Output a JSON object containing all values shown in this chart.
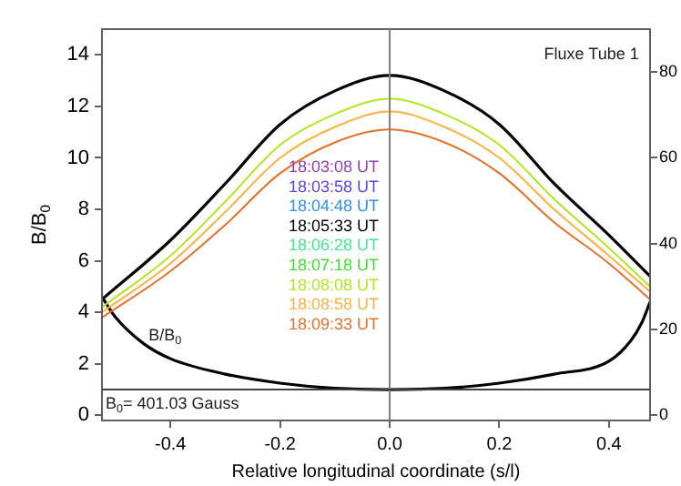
{
  "chart_data": {
    "type": "line",
    "xlabel": "Relative longitudinal coordinate (s/l)",
    "ylabel": "B/B$_{0}$",
    "x": [
      -0.525,
      -0.4,
      -0.3,
      -0.2,
      -0.1,
      0,
      0.1,
      0.2,
      0.3,
      0.4,
      0.475
    ],
    "xlim": [
      -0.525,
      0.475
    ],
    "xticks": [
      -0.4,
      -0.2,
      {
        "value": 0,
        "label": "0.0"
      },
      0.2,
      0.4
    ],
    "ylim": [
      -0.2,
      15
    ],
    "yticks": [
      0,
      2,
      4,
      6,
      8,
      10,
      12,
      14
    ],
    "y2lim": [
      -1.2,
      90
    ],
    "y2ticks": [
      0,
      20,
      40,
      60,
      80
    ],
    "grid": false,
    "legend": "center",
    "marker": "none",
    "line_style": "solid",
    "series": [
      {
        "name": "18:03:08 UT",
        "color": "#9040b0",
        "values": [
          null,
          null,
          null,
          null,
          null,
          null,
          null,
          null,
          null,
          null,
          null
        ]
      },
      {
        "name": "18:03:58 UT",
        "color": "#6040f0",
        "values": [
          null,
          null,
          null,
          null,
          null,
          null,
          null,
          null,
          null,
          null,
          null
        ]
      },
      {
        "name": "18:04:48 UT",
        "color": "#3090f0",
        "values": [
          null,
          null,
          null,
          null,
          null,
          null,
          null,
          null,
          null,
          null,
          null
        ]
      },
      {
        "name": "18:05:33 UT",
        "color": "#000000",
        "values": [
          4.5,
          6.8,
          9.0,
          11.3,
          12.6,
          13.2,
          12.6,
          11.3,
          9.0,
          7.0,
          5.4
        ]
      },
      {
        "name": "18:06:28 UT",
        "color": "#40e890",
        "values": [
          null,
          null,
          null,
          null,
          null,
          null,
          null,
          null,
          null,
          null,
          null
        ]
      },
      {
        "name": "18:07:18 UT",
        "color": "#40e030",
        "values": [
          null,
          null,
          null,
          null,
          null,
          null,
          null,
          null,
          null,
          null,
          null
        ]
      },
      {
        "name": "18:08:08 UT",
        "color": "#b0e820",
        "values": [
          4.2,
          6.2,
          8.3,
          10.5,
          11.7,
          12.3,
          11.7,
          10.5,
          8.4,
          6.5,
          5.0
        ]
      },
      {
        "name": "18:08:58 UT",
        "color": "#ffb040",
        "values": [
          4.0,
          5.9,
          7.9,
          10.0,
          11.2,
          11.8,
          11.2,
          10.0,
          8.0,
          6.2,
          4.8
        ]
      },
      {
        "name": "18:09:33 UT",
        "color": "#e87028",
        "values": [
          3.8,
          5.6,
          7.4,
          9.4,
          10.6,
          11.1,
          10.6,
          9.4,
          7.5,
          5.9,
          4.5
        ]
      },
      {
        "color": "#000000",
        "x": [
          -0.525,
          -0.5,
          -0.45,
          -0.4,
          -0.3,
          -0.2,
          -0.1,
          0,
          0.1,
          0.2,
          0.3,
          0.4,
          0.44,
          0.46,
          0.475
        ],
        "values": [
          4.6,
          3.8,
          2.8,
          2.2,
          1.6,
          1.25,
          1.05,
          1.0,
          1.05,
          1.25,
          1.6,
          2.1,
          2.9,
          3.6,
          4.4
        ]
      }
    ],
    "ref_lines": [
      {
        "axis": "x",
        "value": 0,
        "color": "#808080"
      },
      {
        "axis": "y",
        "value": 1,
        "color": "#404040"
      }
    ],
    "annotations": [
      "Fluxe Tube 1",
      {
        "text": "B/B$_{0}$",
        "x": -0.44,
        "y": 3.1
      },
      "B$_{0}$= 401.03 Gauss"
    ]
  }
}
